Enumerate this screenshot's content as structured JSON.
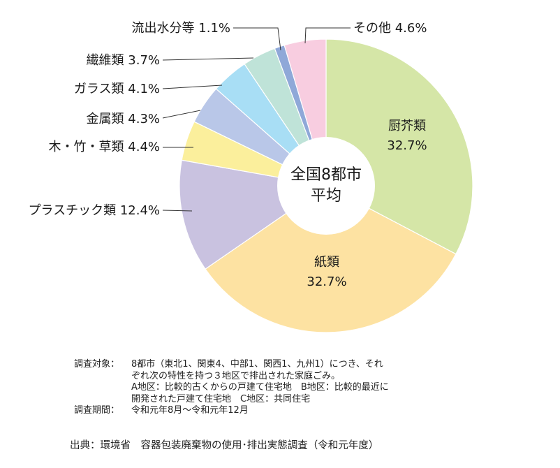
{
  "chart_data": {
    "type": "pie",
    "donut": true,
    "center_label": [
      "全国8都市",
      "平均"
    ],
    "slices": [
      {
        "label": "厨芥類",
        "value": 32.7,
        "value_text": "32.7%",
        "color": "#d5e6a7",
        "label_inside": true
      },
      {
        "label": "紙類",
        "value": 32.7,
        "value_text": "32.7%",
        "color": "#fde2a2",
        "label_inside": true
      },
      {
        "label": "プラスチック類",
        "value": 12.4,
        "value_text": "12.4%",
        "color": "#c9c2e0",
        "label_inside": false
      },
      {
        "label": "木・竹・草類",
        "value": 4.4,
        "value_text": "4.4%",
        "color": "#fbef9c",
        "label_inside": false
      },
      {
        "label": "金属類",
        "value": 4.3,
        "value_text": "4.3%",
        "color": "#b9c7e8",
        "label_inside": false
      },
      {
        "label": "ガラス類",
        "value": 4.1,
        "value_text": "4.1%",
        "color": "#a8def5",
        "label_inside": false
      },
      {
        "label": "繊維類",
        "value": 3.7,
        "value_text": "3.7%",
        "color": "#bfe3d8",
        "label_inside": false
      },
      {
        "label": "流出水分等",
        "value": 1.1,
        "value_text": "1.1%",
        "color": "#8fa8d8",
        "label_inside": false
      },
      {
        "label": "その他",
        "value": 4.6,
        "value_text": "4.6%",
        "color": "#f8cde0",
        "label_inside": false
      }
    ]
  },
  "notes": [
    {
      "label": "調査対象：",
      "lines": [
        "8都市（東北1、関東4、中部1、関西1、九州1）につき、それ",
        "ぞれ次の特性を持つ３地区で排出された家庭ごみ。",
        "A地区：比較的古くからの戸建て住宅地　B地区：比較的最近に",
        "開発された戸建て住宅地　C地区：共同住宅"
      ]
    },
    {
      "label": "調査期間：",
      "lines": [
        "令和元年8月〜令和元年12月"
      ]
    }
  ],
  "source": "出典：環境省　容器包装廃棄物の使用･排出実態調査（令和元年度）"
}
